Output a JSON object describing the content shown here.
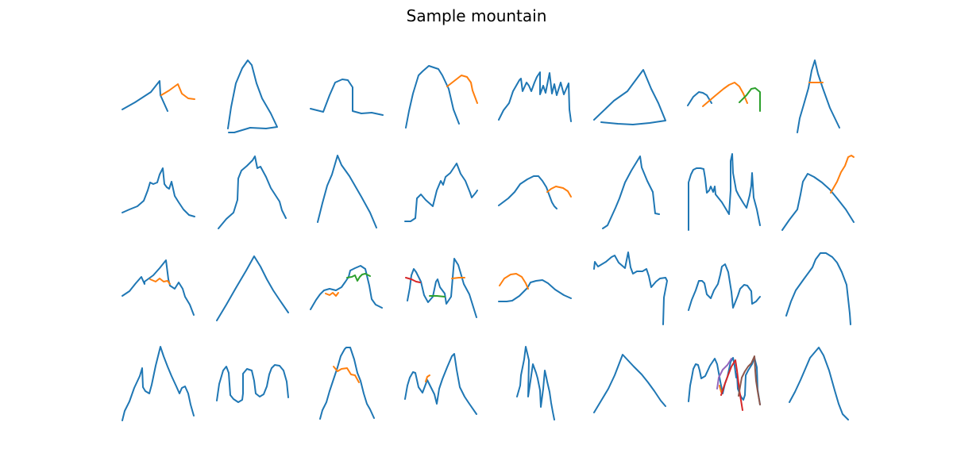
{
  "header": {
    "title": "Sample mountain"
  },
  "palette": {
    "blue": "#1f77b4",
    "orange": "#ff7f0e",
    "green": "#2ca02c",
    "red": "#d62728",
    "purple": "#9467bd",
    "brown": "#8c564b"
  },
  "grid": {
    "rows": 4,
    "cols": 8,
    "sketch_count": 32
  }
}
